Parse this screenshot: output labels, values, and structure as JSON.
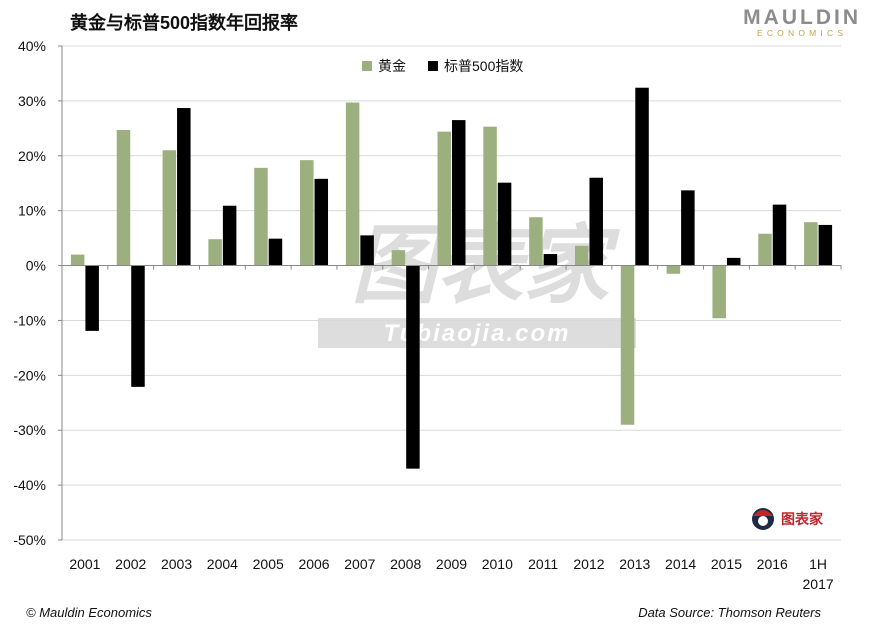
{
  "header": {
    "title": "黄金与标普500指数年回报率",
    "brand_name": "MAULDIN",
    "brand_sub": "ECONOMICS"
  },
  "footer": {
    "copyright": "© Mauldin Economics",
    "source": "Data Source: Thomson Reuters"
  },
  "watermark": {
    "main": "图表家",
    "sub": "Tubiaojia.com"
  },
  "corner_logo": {
    "text": "图表家",
    "icon": "tubiaojia-logo-icon"
  },
  "colors": {
    "gold": "#9bb07e",
    "sp500": "#000000",
    "grid": "#d9d9d9",
    "axis": "#888888"
  },
  "chart_data": {
    "type": "bar",
    "title": "黄金与标普500指数年回报率",
    "categories": [
      "2001",
      "2002",
      "2003",
      "2004",
      "2005",
      "2006",
      "2007",
      "2008",
      "2009",
      "2010",
      "2011",
      "2012",
      "2013",
      "2014",
      "2015",
      "2016",
      "1H 2017"
    ],
    "series": [
      {
        "name": "黄金",
        "color": "#9bb07e",
        "values": [
          2,
          24.7,
          21,
          4.8,
          17.8,
          19.2,
          29.7,
          2.8,
          24.4,
          25.3,
          8.8,
          3.6,
          -29,
          -1.5,
          -9.6,
          5.8,
          7.9
        ]
      },
      {
        "name": "标普500指数",
        "color": "#000000",
        "values": [
          -11.9,
          -22.1,
          28.7,
          10.9,
          4.9,
          15.8,
          5.5,
          -37,
          26.5,
          15.1,
          2.1,
          16,
          32.4,
          13.7,
          1.4,
          11.1,
          7.4
        ]
      }
    ],
    "ylim": [
      -50,
      40
    ],
    "yticks": [
      40,
      30,
      20,
      10,
      0,
      -10,
      -20,
      -30,
      -40,
      -50
    ],
    "ytick_labels": [
      "40%",
      "30%",
      "20%",
      "10%",
      "0%",
      "-10%",
      "-20%",
      "-30%",
      "-40%",
      "-50%"
    ],
    "xtick_labels": [
      [
        "2001"
      ],
      [
        "2002"
      ],
      [
        "2003"
      ],
      [
        "2004"
      ],
      [
        "2005"
      ],
      [
        "2006"
      ],
      [
        "2007"
      ],
      [
        "2008"
      ],
      [
        "2009"
      ],
      [
        "2010"
      ],
      [
        "2011"
      ],
      [
        "2012"
      ],
      [
        "2013"
      ],
      [
        "2014"
      ],
      [
        "2015"
      ],
      [
        "2016"
      ],
      [
        "1H",
        "2017"
      ]
    ],
    "xlabel": "",
    "ylabel": "",
    "grid": true,
    "legend": "top-center"
  }
}
